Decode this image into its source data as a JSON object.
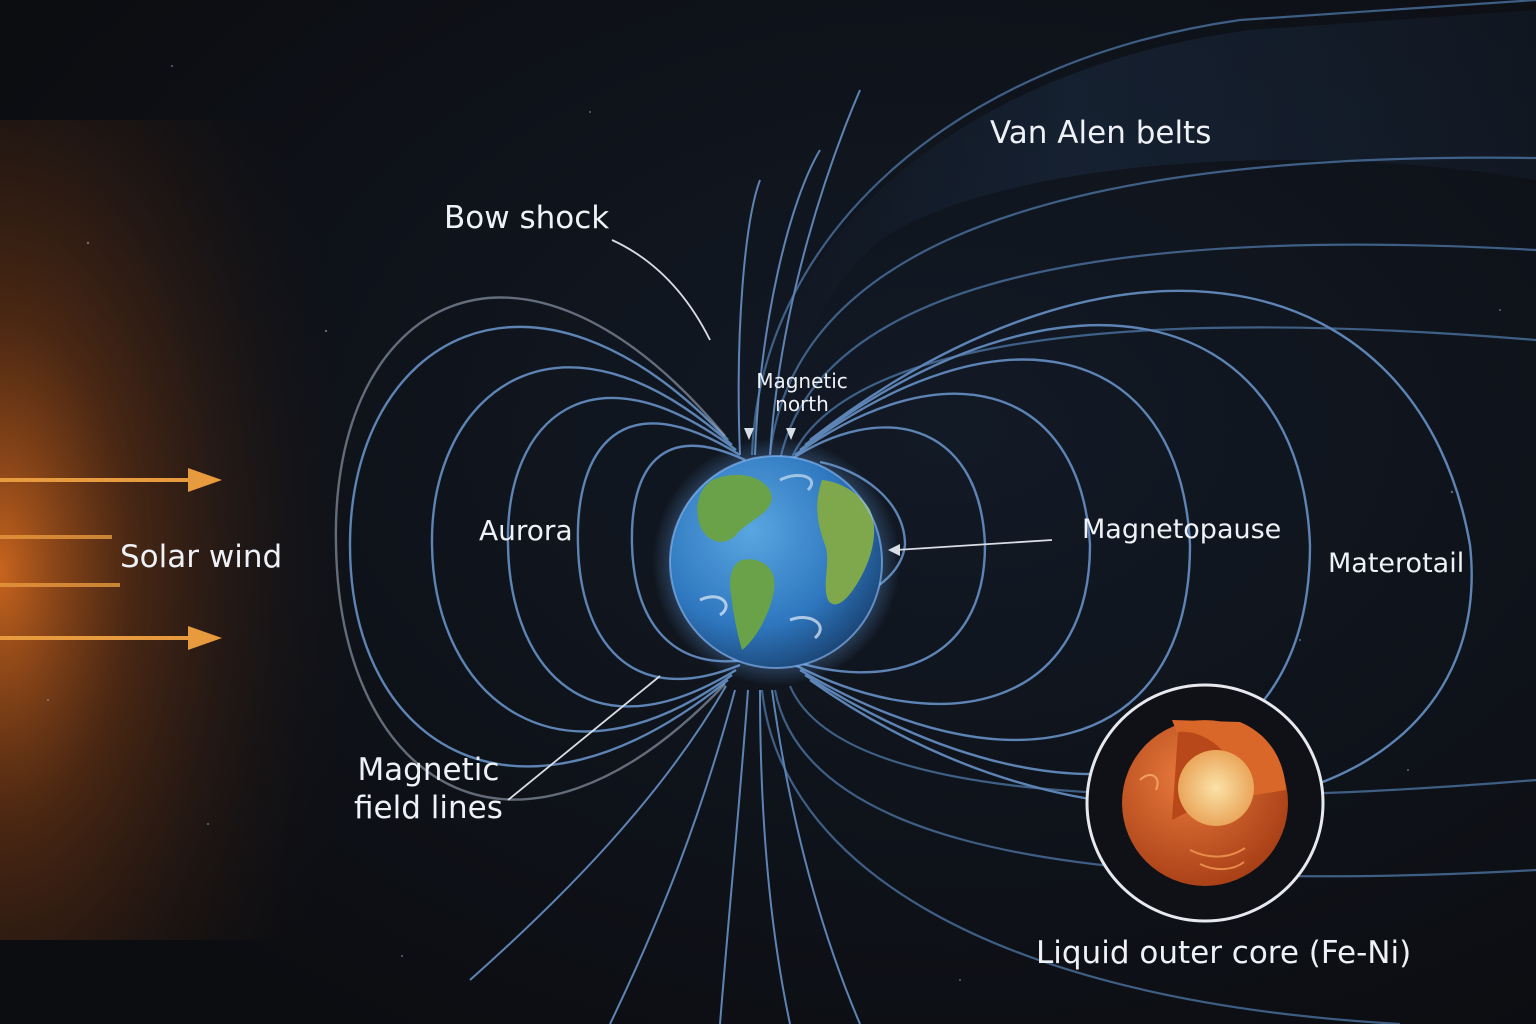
{
  "labels": {
    "van_allen": "Van Alen belts",
    "bow_shock": "Bow shock",
    "magnetic_north_line1": "Magnetic",
    "magnetic_north_line2": "north",
    "aurora": "Aurora",
    "solar_wind": "Solar wind",
    "magnetopause": "Magnetopause",
    "magnetotail": "Materotail",
    "field_lines_line1": "Magnetic",
    "field_lines_line2": "field lines",
    "core": "Liquid outer core (Fe-Ni)"
  },
  "colors": {
    "background": "#0d0e12",
    "field_line": "#5d84b4",
    "solar_glow": "#c9631f",
    "solar_arrow": "#e89a3e",
    "earth_ocean": "#2f78c0",
    "earth_land": "#6aa24a",
    "core_outer": "#c95322",
    "core_inner": "#f3c07a",
    "label_text": "#eef1f6"
  },
  "icons": [
    "earth-globe",
    "core-cutaway",
    "solar-wind-arrow",
    "pointer-arrow"
  ]
}
